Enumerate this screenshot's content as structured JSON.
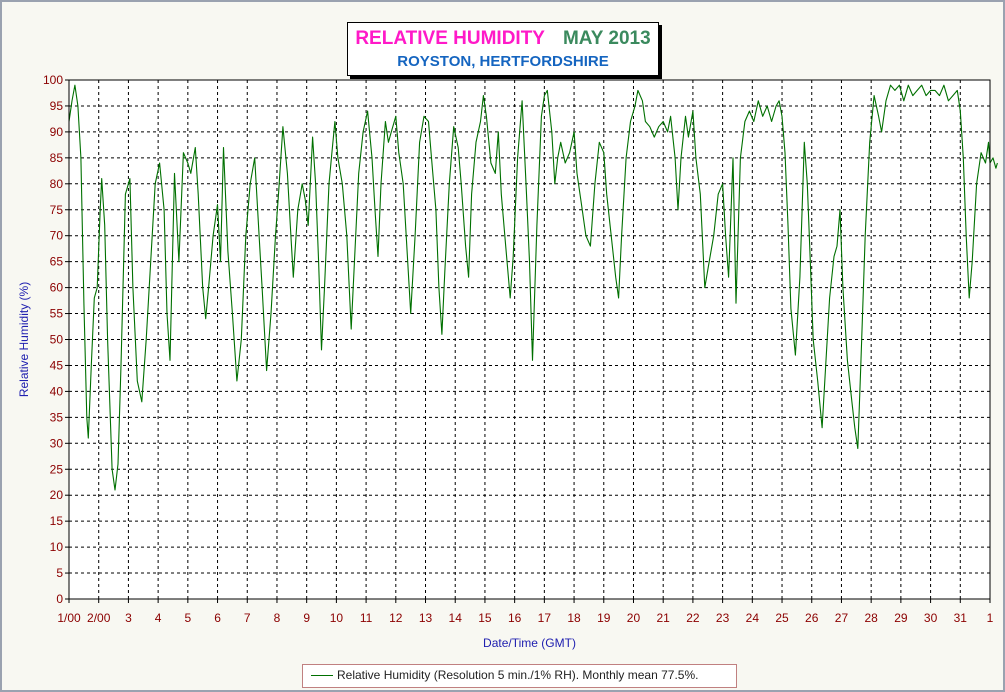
{
  "title": {
    "main": "RELATIVE HUMIDITY",
    "period": "MAY 2013",
    "subtitle": "ROYSTON, HERTFORDSHIRE"
  },
  "legend": {
    "label": "Relative Humidity (Resolution 5 min./1% RH). Monthly mean 77.5%."
  },
  "colors": {
    "series": "#007000",
    "tick_labels": "#8b0000",
    "axis_titles": "#2020b0",
    "title_main": "#ff19c8",
    "title_period": "#3b8a5e",
    "subtitle": "#1565c0"
  },
  "chart_data": {
    "type": "line",
    "title": "RELATIVE HUMIDITY MAY 2013",
    "subtitle": "ROYSTON, HERTFORDSHIRE",
    "xlabel": "Date/Time (GMT)",
    "ylabel": "Relative Humidity (%)",
    "ylim": [
      0,
      100
    ],
    "xlim": [
      1,
      32
    ],
    "yticks": [
      0,
      5,
      10,
      15,
      20,
      25,
      30,
      35,
      40,
      45,
      50,
      55,
      60,
      65,
      70,
      75,
      80,
      85,
      90,
      95,
      100
    ],
    "xticks": [
      {
        "x": 1,
        "label": "1/00"
      },
      {
        "x": 2,
        "label": "2/00"
      },
      {
        "x": 3,
        "label": "3"
      },
      {
        "x": 4,
        "label": "4"
      },
      {
        "x": 5,
        "label": "5"
      },
      {
        "x": 6,
        "label": "6"
      },
      {
        "x": 7,
        "label": "7"
      },
      {
        "x": 8,
        "label": "8"
      },
      {
        "x": 9,
        "label": "9"
      },
      {
        "x": 10,
        "label": "10"
      },
      {
        "x": 11,
        "label": "11"
      },
      {
        "x": 12,
        "label": "12"
      },
      {
        "x": 13,
        "label": "13"
      },
      {
        "x": 14,
        "label": "14"
      },
      {
        "x": 15,
        "label": "15"
      },
      {
        "x": 16,
        "label": "16"
      },
      {
        "x": 17,
        "label": "17"
      },
      {
        "x": 18,
        "label": "18"
      },
      {
        "x": 19,
        "label": "19"
      },
      {
        "x": 20,
        "label": "20"
      },
      {
        "x": 21,
        "label": "21"
      },
      {
        "x": 22,
        "label": "22"
      },
      {
        "x": 23,
        "label": "23"
      },
      {
        "x": 24,
        "label": "24"
      },
      {
        "x": 25,
        "label": "25"
      },
      {
        "x": 26,
        "label": "26"
      },
      {
        "x": 27,
        "label": "27"
      },
      {
        "x": 28,
        "label": "28"
      },
      {
        "x": 29,
        "label": "29"
      },
      {
        "x": 30,
        "label": "30"
      },
      {
        "x": 31,
        "label": "31"
      },
      {
        "x": 32,
        "label": "1"
      }
    ],
    "grid": true,
    "legend_position": "bottom",
    "series": [
      {
        "name": "Relative Humidity (Resolution 5 min./1% RH). Monthly mean 77.5%.",
        "points": [
          [
            1.0,
            92
          ],
          [
            1.1,
            96
          ],
          [
            1.2,
            99
          ],
          [
            1.3,
            95
          ],
          [
            1.4,
            85
          ],
          [
            1.5,
            57
          ],
          [
            1.6,
            35
          ],
          [
            1.65,
            31
          ],
          [
            1.75,
            45
          ],
          [
            1.85,
            58
          ],
          [
            1.95,
            60
          ],
          [
            2.05,
            75
          ],
          [
            2.1,
            81
          ],
          [
            2.2,
            72
          ],
          [
            2.3,
            50
          ],
          [
            2.45,
            25
          ],
          [
            2.55,
            21
          ],
          [
            2.65,
            26
          ],
          [
            2.75,
            45
          ],
          [
            2.9,
            78
          ],
          [
            3.05,
            81
          ],
          [
            3.15,
            60
          ],
          [
            3.3,
            42
          ],
          [
            3.45,
            38
          ],
          [
            3.6,
            50
          ],
          [
            3.75,
            65
          ],
          [
            3.9,
            80
          ],
          [
            4.05,
            84
          ],
          [
            4.2,
            75
          ],
          [
            4.3,
            55
          ],
          [
            4.4,
            46
          ],
          [
            4.55,
            82
          ],
          [
            4.7,
            65
          ],
          [
            4.85,
            86
          ],
          [
            5.0,
            84
          ],
          [
            5.1,
            82
          ],
          [
            5.25,
            87
          ],
          [
            5.35,
            78
          ],
          [
            5.5,
            60
          ],
          [
            5.6,
            54
          ],
          [
            5.7,
            60
          ],
          [
            5.85,
            70
          ],
          [
            6.0,
            76
          ],
          [
            6.1,
            65
          ],
          [
            6.2,
            87
          ],
          [
            6.35,
            67
          ],
          [
            6.5,
            55
          ],
          [
            6.65,
            42
          ],
          [
            6.8,
            50
          ],
          [
            6.95,
            70
          ],
          [
            7.1,
            80
          ],
          [
            7.25,
            85
          ],
          [
            7.4,
            70
          ],
          [
            7.5,
            60
          ],
          [
            7.65,
            44
          ],
          [
            7.8,
            55
          ],
          [
            7.95,
            70
          ],
          [
            8.05,
            78
          ],
          [
            8.2,
            91
          ],
          [
            8.35,
            82
          ],
          [
            8.45,
            72
          ],
          [
            8.55,
            62
          ],
          [
            8.7,
            75
          ],
          [
            8.85,
            80
          ],
          [
            8.95,
            77
          ],
          [
            9.05,
            72
          ],
          [
            9.2,
            89
          ],
          [
            9.3,
            80
          ],
          [
            9.4,
            65
          ],
          [
            9.5,
            48
          ],
          [
            9.6,
            60
          ],
          [
            9.75,
            80
          ],
          [
            9.85,
            86
          ],
          [
            9.95,
            92
          ],
          [
            10.05,
            85
          ],
          [
            10.2,
            80
          ],
          [
            10.35,
            70
          ],
          [
            10.5,
            52
          ],
          [
            10.6,
            64
          ],
          [
            10.75,
            82
          ],
          [
            10.9,
            90
          ],
          [
            11.05,
            94
          ],
          [
            11.2,
            85
          ],
          [
            11.3,
            75
          ],
          [
            11.4,
            66
          ],
          [
            11.5,
            80
          ],
          [
            11.65,
            92
          ],
          [
            11.75,
            88
          ],
          [
            11.85,
            90
          ],
          [
            12.0,
            93
          ],
          [
            12.1,
            86
          ],
          [
            12.25,
            80
          ],
          [
            12.4,
            65
          ],
          [
            12.5,
            55
          ],
          [
            12.65,
            70
          ],
          [
            12.8,
            88
          ],
          [
            12.95,
            93
          ],
          [
            13.1,
            92
          ],
          [
            13.2,
            85
          ],
          [
            13.35,
            75
          ],
          [
            13.45,
            60
          ],
          [
            13.55,
            51
          ],
          [
            13.65,
            63
          ],
          [
            13.8,
            80
          ],
          [
            13.95,
            91
          ],
          [
            14.1,
            87
          ],
          [
            14.2,
            80
          ],
          [
            14.35,
            68
          ],
          [
            14.45,
            62
          ],
          [
            14.55,
            78
          ],
          [
            14.7,
            88
          ],
          [
            14.85,
            92
          ],
          [
            14.95,
            97
          ],
          [
            15.05,
            93
          ],
          [
            15.2,
            84
          ],
          [
            15.35,
            82
          ],
          [
            15.45,
            90
          ],
          [
            15.55,
            78
          ],
          [
            15.7,
            68
          ],
          [
            15.85,
            58
          ],
          [
            15.95,
            66
          ],
          [
            16.1,
            85
          ],
          [
            16.25,
            96
          ],
          [
            16.4,
            78
          ],
          [
            16.5,
            65
          ],
          [
            16.6,
            46
          ],
          [
            16.75,
            72
          ],
          [
            16.9,
            93
          ],
          [
            17.0,
            97
          ],
          [
            17.1,
            98
          ],
          [
            17.25,
            90
          ],
          [
            17.35,
            80
          ],
          [
            17.45,
            85
          ],
          [
            17.55,
            88
          ],
          [
            17.7,
            84
          ],
          [
            17.85,
            86
          ],
          [
            18.0,
            90
          ],
          [
            18.1,
            82
          ],
          [
            18.25,
            76
          ],
          [
            18.4,
            70
          ],
          [
            18.55,
            68
          ],
          [
            18.7,
            80
          ],
          [
            18.85,
            88
          ],
          [
            19.0,
            86
          ],
          [
            19.1,
            78
          ],
          [
            19.25,
            70
          ],
          [
            19.4,
            62
          ],
          [
            19.5,
            58
          ],
          [
            19.6,
            70
          ],
          [
            19.75,
            85
          ],
          [
            19.9,
            92
          ],
          [
            20.05,
            95
          ],
          [
            20.15,
            98
          ],
          [
            20.3,
            96
          ],
          [
            20.4,
            92
          ],
          [
            20.55,
            91
          ],
          [
            20.7,
            89
          ],
          [
            20.85,
            91
          ],
          [
            21.0,
            92
          ],
          [
            21.15,
            90
          ],
          [
            21.25,
            93
          ],
          [
            21.4,
            85
          ],
          [
            21.5,
            75
          ],
          [
            21.6,
            85
          ],
          [
            21.75,
            93
          ],
          [
            21.85,
            89
          ],
          [
            22.0,
            94
          ],
          [
            22.1,
            85
          ],
          [
            22.25,
            78
          ],
          [
            22.4,
            60
          ],
          [
            22.55,
            65
          ],
          [
            22.7,
            70
          ],
          [
            22.85,
            78
          ],
          [
            23.0,
            80
          ],
          [
            23.1,
            70
          ],
          [
            23.2,
            62
          ],
          [
            23.35,
            85
          ],
          [
            23.45,
            57
          ],
          [
            23.6,
            85
          ],
          [
            23.75,
            92
          ],
          [
            23.9,
            94
          ],
          [
            24.05,
            92
          ],
          [
            24.2,
            96
          ],
          [
            24.35,
            93
          ],
          [
            24.5,
            95
          ],
          [
            24.65,
            92
          ],
          [
            24.8,
            95
          ],
          [
            24.9,
            96
          ],
          [
            25.0,
            93
          ],
          [
            25.1,
            86
          ],
          [
            25.2,
            72
          ],
          [
            25.3,
            56
          ],
          [
            25.45,
            47
          ],
          [
            25.6,
            62
          ],
          [
            25.75,
            88
          ],
          [
            25.85,
            80
          ],
          [
            25.95,
            65
          ],
          [
            26.05,
            50
          ],
          [
            26.2,
            42
          ],
          [
            26.35,
            33
          ],
          [
            26.5,
            48
          ],
          [
            26.6,
            58
          ],
          [
            26.75,
            66
          ],
          [
            26.85,
            68
          ],
          [
            26.95,
            75
          ],
          [
            27.05,
            60
          ],
          [
            27.2,
            46
          ],
          [
            27.35,
            38
          ],
          [
            27.45,
            33
          ],
          [
            27.55,
            29
          ],
          [
            27.65,
            45
          ],
          [
            27.8,
            70
          ],
          [
            27.95,
            88
          ],
          [
            28.1,
            97
          ],
          [
            28.25,
            93
          ],
          [
            28.35,
            90
          ],
          [
            28.5,
            96
          ],
          [
            28.65,
            99
          ],
          [
            28.8,
            98
          ],
          [
            28.95,
            99
          ],
          [
            29.1,
            96
          ],
          [
            29.25,
            99
          ],
          [
            29.4,
            97
          ],
          [
            29.55,
            98
          ],
          [
            29.7,
            99
          ],
          [
            29.85,
            97
          ],
          [
            30.0,
            98
          ],
          [
            30.15,
            98
          ],
          [
            30.3,
            97
          ],
          [
            30.45,
            99
          ],
          [
            30.6,
            96
          ],
          [
            30.75,
            97
          ],
          [
            30.9,
            98
          ],
          [
            31.0,
            94
          ],
          [
            31.1,
            85
          ],
          [
            31.2,
            70
          ],
          [
            31.3,
            58
          ],
          [
            31.4,
            65
          ],
          [
            31.55,
            80
          ],
          [
            31.7,
            86
          ],
          [
            31.85,
            84
          ],
          [
            31.95,
            88
          ],
          [
            32.0,
            84
          ],
          [
            32.1,
            85
          ],
          [
            32.2,
            83
          ],
          [
            32.25,
            84
          ]
        ]
      }
    ]
  }
}
